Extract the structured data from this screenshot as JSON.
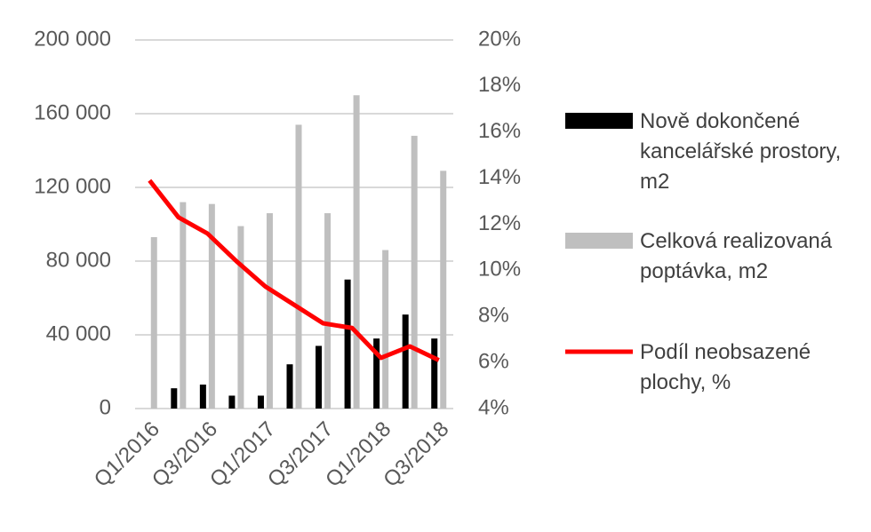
{
  "chart_data": {
    "type": "bar-line",
    "categories": [
      "Q1/2016",
      null,
      "Q3/2016",
      null,
      "Q1/2017",
      null,
      "Q3/2017",
      null,
      "Q1/2018",
      null,
      "Q3/2018"
    ],
    "series": [
      {
        "name": "Nově dokončené kancelářské prostory, m2",
        "type": "bar",
        "color": "#000000",
        "values": [
          0,
          11000,
          13000,
          7000,
          7000,
          24000,
          34000,
          70000,
          38000,
          51000,
          38000
        ]
      },
      {
        "name": "Celková realizovaná poptávka, m2",
        "type": "bar",
        "color": "#bfbfbf",
        "values": [
          93000,
          112000,
          111000,
          99000,
          106000,
          154000,
          106000,
          170000,
          86000,
          148000,
          129000
        ]
      },
      {
        "name": "Podíl neobsazené plochy, %",
        "type": "line",
        "axis": "y2",
        "color": "#ff0000",
        "values": [
          13.9,
          12.3,
          11.6,
          10.4,
          9.3,
          8.5,
          7.7,
          7.5,
          6.2,
          6.7,
          6.1
        ]
      }
    ],
    "ylim": [
      0,
      200000
    ],
    "yticks": [
      {
        "value": 0,
        "label": "0"
      },
      {
        "value": 40000,
        "label": "40 000"
      },
      {
        "value": 80000,
        "label": "80 000"
      },
      {
        "value": 120000,
        "label": "120 000"
      },
      {
        "value": 160000,
        "label": "160 000"
      },
      {
        "value": 200000,
        "label": "200 000"
      }
    ],
    "y2lim": [
      4,
      20
    ],
    "y2ticks": [
      {
        "value": 4,
        "label": "4%"
      },
      {
        "value": 6,
        "label": "6%"
      },
      {
        "value": 8,
        "label": "8%"
      },
      {
        "value": 10,
        "label": "10%"
      },
      {
        "value": 12,
        "label": "12%"
      },
      {
        "value": 14,
        "label": "14%"
      },
      {
        "value": 16,
        "label": "16%"
      },
      {
        "value": 18,
        "label": "18%"
      },
      {
        "value": 20,
        "label": "20%"
      }
    ],
    "grid": true,
    "legend": "right"
  }
}
